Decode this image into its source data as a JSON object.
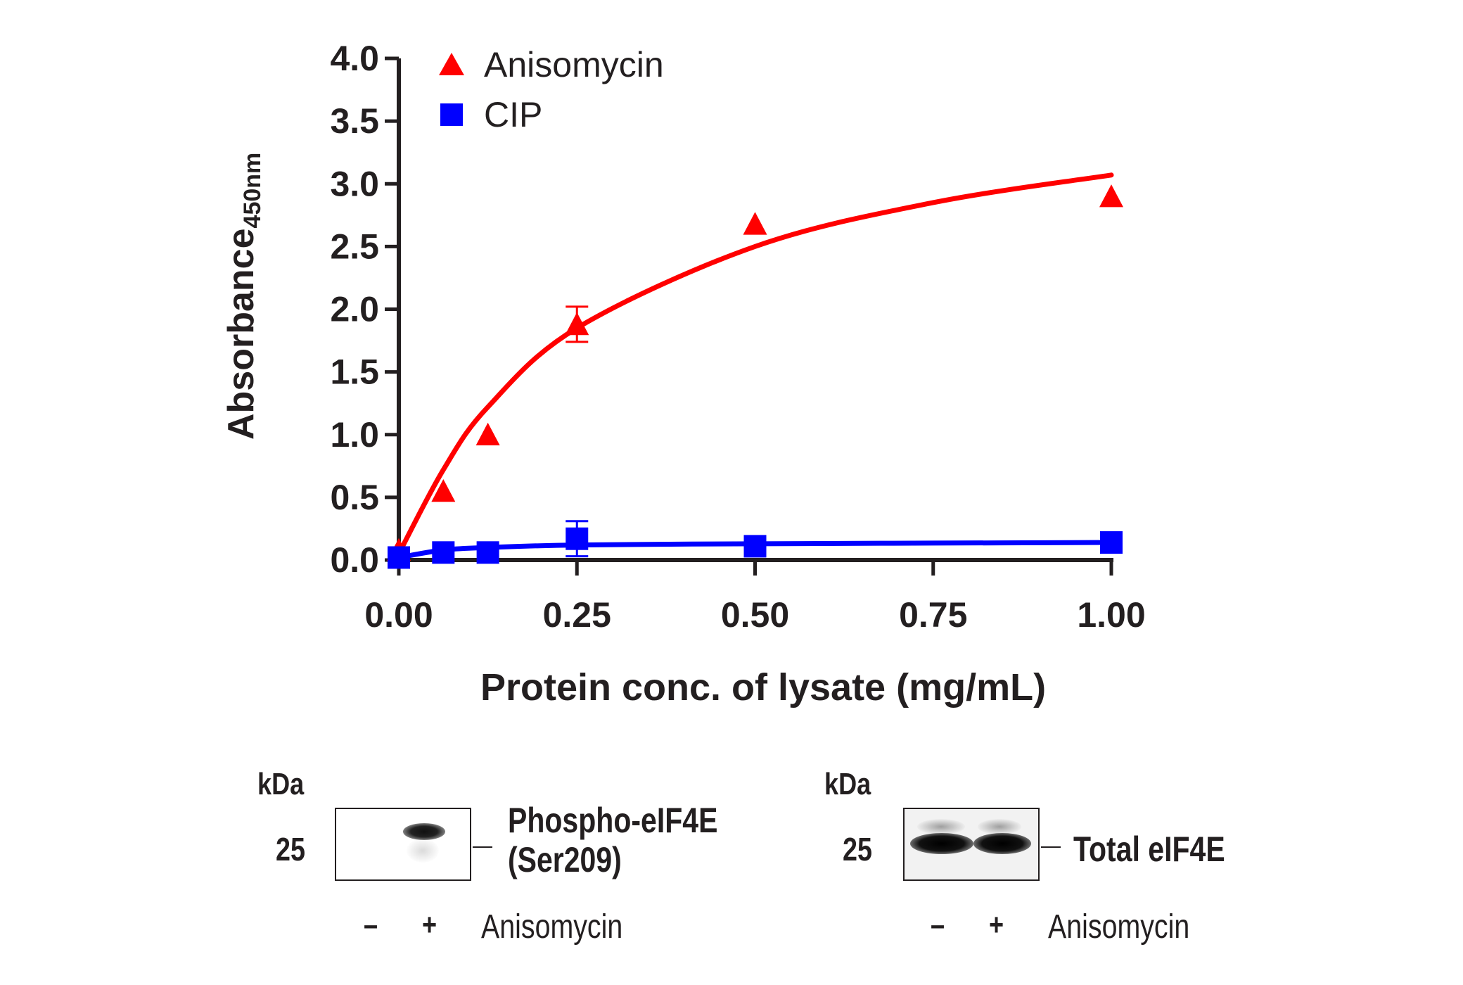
{
  "chart_data": {
    "type": "scatter",
    "xlabel": "Protein conc. of lysate (mg/mL)",
    "ylabel": "Absorbance",
    "ylabel_sub": "450nm",
    "xlim": [
      0,
      1.0
    ],
    "ylim": [
      0,
      4.0
    ],
    "xticks": [
      "0.00",
      "0.25",
      "0.50",
      "0.75",
      "1.00"
    ],
    "yticks": [
      "0.0",
      "0.5",
      "1.0",
      "1.5",
      "2.0",
      "2.5",
      "3.0",
      "3.5",
      "4.0"
    ],
    "grid": false,
    "legend_position": "top-left",
    "series": [
      {
        "name": "Anisomycin",
        "marker": "triangle",
        "color": "#ff0000",
        "x": [
          0,
          0.0625,
          0.125,
          0.25,
          0.5,
          1.0
        ],
        "y": [
          0.08,
          0.55,
          1.0,
          1.88,
          2.68,
          2.9
        ],
        "error": [
          0,
          0.03,
          0.02,
          0.14,
          0.02,
          0.03
        ],
        "fit": {
          "x": [
            0,
            0.0625,
            0.125,
            0.25,
            0.5,
            0.75,
            1.0
          ],
          "y": [
            0.05,
            0.72,
            1.22,
            1.85,
            2.5,
            2.85,
            3.07
          ]
        }
      },
      {
        "name": "CIP",
        "marker": "square",
        "color": "#0000ff",
        "x": [
          0,
          0.0625,
          0.125,
          0.25,
          0.5,
          1.0
        ],
        "y": [
          0.02,
          0.06,
          0.06,
          0.17,
          0.11,
          0.14
        ],
        "error": [
          0,
          0.01,
          0.01,
          0.14,
          0.01,
          0.01
        ],
        "fit": {
          "x": [
            0,
            0.0625,
            0.125,
            0.25,
            0.5,
            0.75,
            1.0
          ],
          "y": [
            0.02,
            0.08,
            0.1,
            0.12,
            0.13,
            0.135,
            0.14
          ]
        }
      }
    ]
  },
  "blots": [
    {
      "kda_label": "kDa",
      "mw": "25",
      "target_line1": "Phospho-eIF4E",
      "target_line2": "(Ser209)",
      "lane_minus": "–",
      "lane_plus": "+",
      "treatment": "Anisomycin"
    },
    {
      "kda_label": "kDa",
      "mw": "25",
      "target_line1": "Total eIF4E",
      "lane_minus": "–",
      "lane_plus": "+",
      "treatment": "Anisomycin"
    }
  ]
}
